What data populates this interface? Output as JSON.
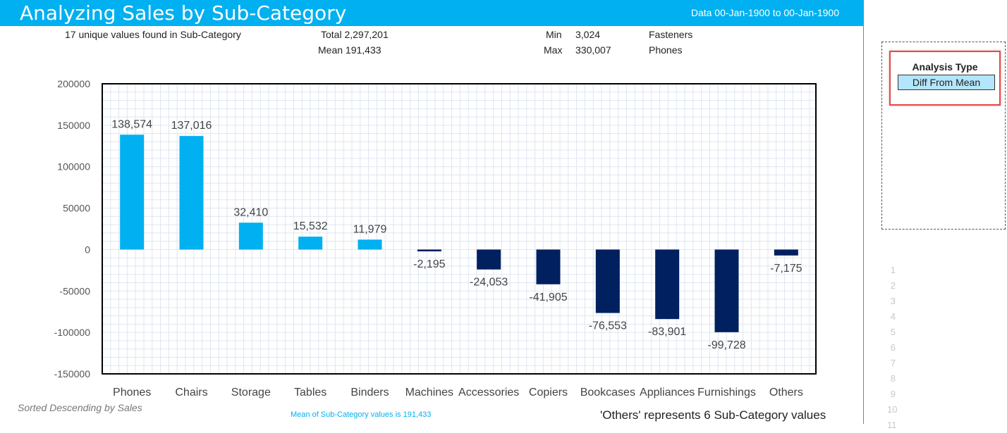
{
  "header": {
    "title": "Analyzing Sales by Sub-Category",
    "date_range": "Data 00-Jan-1900 to 00-Jan-1900"
  },
  "stats": {
    "unique_values": "17 unique values found in Sub-Category",
    "total": "Total 2,297,201",
    "mean": "Mean 191,433",
    "min_label": "Min",
    "min_value": "3,024",
    "min_category": "Fasteners",
    "max_label": "Max",
    "max_value": "330,007",
    "max_category": "Phones"
  },
  "side_panel": {
    "analysis_type_label": "Analysis Type",
    "analysis_type_value": "Diff From Mean",
    "row_numbers": [
      "1",
      "2",
      "3",
      "4",
      "5",
      "6",
      "7",
      "8",
      "9",
      "10",
      "11"
    ]
  },
  "footer": {
    "sort_note": "Sorted Descending by Sales",
    "mean_note": "Mean of Sub-Category values is 191,433",
    "others_note": "'Others' represents 6 Sub-Category values"
  },
  "colors": {
    "header": "#00b0f0",
    "positive_bar": "#00b0f0",
    "negative_bar": "#002060",
    "grid": "#dde6f2",
    "axis_text": "#555555"
  },
  "chart_data": {
    "type": "bar",
    "title": "Analyzing Sales by Sub-Category",
    "xlabel": "",
    "ylabel": "",
    "ylim": [
      -150000,
      200000
    ],
    "yticks": [
      200000,
      150000,
      100000,
      50000,
      0,
      -50000,
      -100000,
      -150000
    ],
    "grid": true,
    "categories": [
      "Phones",
      "Chairs",
      "Storage",
      "Tables",
      "Binders",
      "Machines",
      "Accessories",
      "Copiers",
      "Bookcases",
      "Appliances",
      "Furnishings",
      "Others"
    ],
    "values": [
      138574,
      137016,
      32410,
      15532,
      11979,
      -2195,
      -24053,
      -41905,
      -76553,
      -83901,
      -99728,
      -7175
    ],
    "labels": [
      "138,574",
      "137,016",
      "32,410",
      "15,532",
      "11,979",
      "-2,195",
      "-24,053",
      "-41,905",
      "-76,553",
      "-83,901",
      "-99,728",
      "-7,175"
    ]
  }
}
